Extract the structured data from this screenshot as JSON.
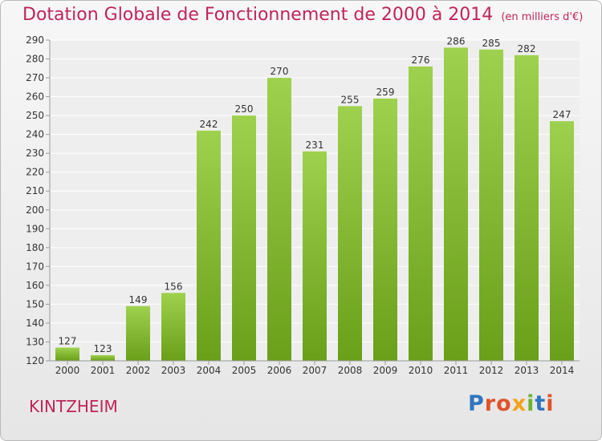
{
  "chart_data": {
    "type": "bar",
    "title": "Dotation Globale de Fonctionnement de 2000 à 2014",
    "subtitle": "(en milliers d'€)",
    "categories": [
      "2000",
      "2001",
      "2002",
      "2003",
      "2004",
      "2005",
      "2006",
      "2007",
      "2008",
      "2009",
      "2010",
      "2011",
      "2012",
      "2013",
      "2014"
    ],
    "values": [
      127,
      123,
      149,
      156,
      242,
      250,
      270,
      231,
      255,
      259,
      276,
      286,
      285,
      282,
      247
    ],
    "ylim": [
      120,
      290
    ],
    "yticks": [
      120,
      130,
      140,
      150,
      160,
      170,
      180,
      190,
      200,
      210,
      220,
      230,
      240,
      250,
      260,
      270,
      280,
      290
    ],
    "grid": true,
    "colors": {
      "bar_light": "#9ed14e",
      "bar_dark": "#6a9f1a",
      "text": "#c0245a"
    }
  },
  "footer": {
    "commune": "KINTZHEIM"
  },
  "logo": {
    "letters": [
      {
        "char": "P",
        "color": "#2f76c0"
      },
      {
        "char": "r",
        "color": "#e0532a"
      },
      {
        "char": "o",
        "color": "#e0532a"
      },
      {
        "char": "x",
        "color": "#f2a31b"
      },
      {
        "char": "i",
        "color": "#6ab42f"
      },
      {
        "char": "t",
        "color": "#2f76c0"
      },
      {
        "char": "i",
        "color": "#e0532a"
      }
    ]
  }
}
